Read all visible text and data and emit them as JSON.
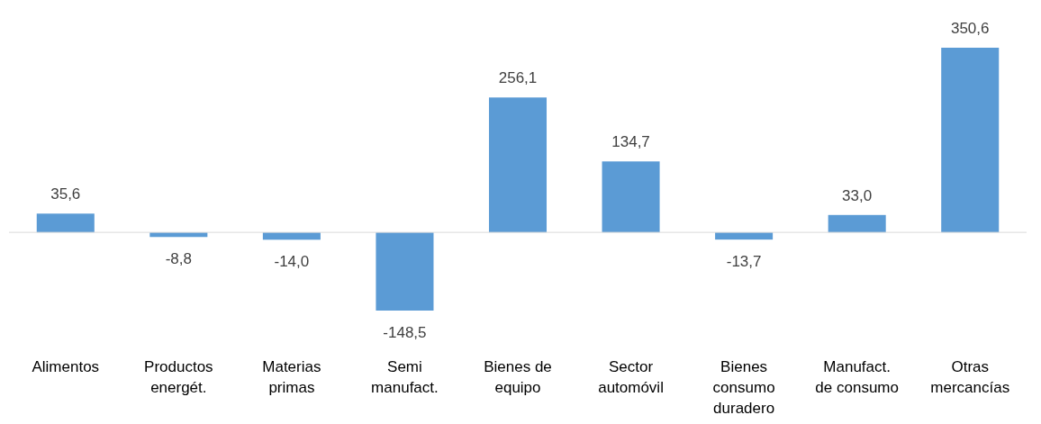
{
  "chart_data": {
    "type": "bar",
    "categories": [
      "Alimentos",
      "Productos energét.",
      "Materias primas",
      "Semi manufact.",
      "Bienes de equipo",
      "Sector automóvil",
      "Bienes consumo duradero",
      "Manufact. de consumo",
      "Otras mercancías"
    ],
    "values": [
      35.6,
      -8.8,
      -14.0,
      -148.5,
      256.1,
      134.7,
      -13.7,
      33.0,
      350.6
    ],
    "value_labels": [
      "35,6",
      "-8,8",
      "-14,0",
      "-148,5",
      "256,1",
      "134,7",
      "-13,7",
      "33,0",
      "350,6"
    ],
    "color": "#5b9bd5"
  }
}
